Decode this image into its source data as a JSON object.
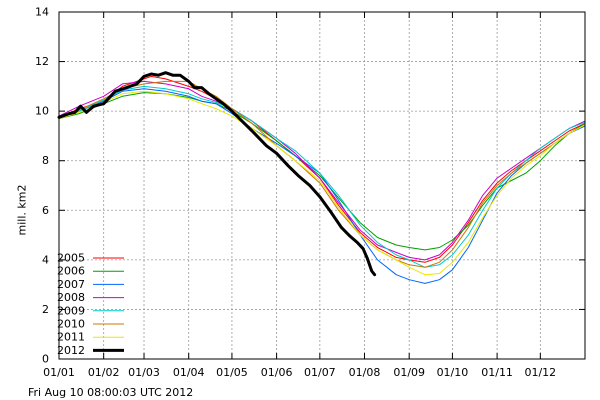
{
  "chart_data": {
    "type": "line",
    "title": "",
    "xlabel": "",
    "ylabel": "mill. km2",
    "ylim": [
      0,
      14
    ],
    "yticks": [
      "0",
      "2",
      "4",
      "6",
      "8",
      "10",
      "12",
      "14"
    ],
    "xlim": [
      1,
      366
    ],
    "xtick_labels": [
      "01/01",
      "01/02",
      "01/03",
      "01/04",
      "01/05",
      "01/06",
      "01/07",
      "01/08",
      "01/09",
      "01/10",
      "01/11",
      "01/12"
    ],
    "xtick_days": [
      1,
      32,
      60,
      91,
      121,
      152,
      182,
      213,
      244,
      274,
      305,
      335
    ],
    "grid": true,
    "legend_position": "bottom-left",
    "timestamp": "Fri Aug 10 08:00:03 UTC 2012",
    "series": [
      {
        "name": "2005",
        "color": "#ff0000",
        "width": 1,
        "points": [
          [
            1,
            9.75
          ],
          [
            15,
            10.1
          ],
          [
            32,
            10.4
          ],
          [
            45,
            11.0
          ],
          [
            55,
            11.2
          ],
          [
            65,
            11.4
          ],
          [
            75,
            11.3
          ],
          [
            91,
            11.0
          ],
          [
            100,
            10.8
          ],
          [
            110,
            10.5
          ],
          [
            121,
            10.1
          ],
          [
            135,
            9.6
          ],
          [
            152,
            8.8
          ],
          [
            165,
            8.2
          ],
          [
            182,
            7.3
          ],
          [
            195,
            6.2
          ],
          [
            210,
            5.1
          ],
          [
            222,
            4.5
          ],
          [
            235,
            4.1
          ],
          [
            244,
            4.0
          ],
          [
            255,
            3.9
          ],
          [
            265,
            4.1
          ],
          [
            274,
            4.6
          ],
          [
            285,
            5.5
          ],
          [
            295,
            6.4
          ],
          [
            305,
            7.1
          ],
          [
            315,
            7.6
          ],
          [
            325,
            8.0
          ],
          [
            335,
            8.4
          ],
          [
            345,
            8.8
          ],
          [
            355,
            9.2
          ],
          [
            366,
            9.5
          ]
        ]
      },
      {
        "name": "2006",
        "color": "#00a000",
        "width": 1,
        "points": [
          [
            1,
            9.7
          ],
          [
            15,
            9.9
          ],
          [
            32,
            10.3
          ],
          [
            45,
            10.6
          ],
          [
            60,
            10.75
          ],
          [
            75,
            10.7
          ],
          [
            91,
            10.55
          ],
          [
            100,
            10.4
          ],
          [
            110,
            10.3
          ],
          [
            121,
            10.0
          ],
          [
            135,
            9.5
          ],
          [
            152,
            8.8
          ],
          [
            165,
            8.2
          ],
          [
            182,
            7.4
          ],
          [
            195,
            6.5
          ],
          [
            210,
            5.5
          ],
          [
            222,
            4.9
          ],
          [
            235,
            4.6
          ],
          [
            244,
            4.5
          ],
          [
            255,
            4.4
          ],
          [
            265,
            4.5
          ],
          [
            274,
            4.8
          ],
          [
            285,
            5.4
          ],
          [
            295,
            6.2
          ],
          [
            305,
            6.9
          ],
          [
            315,
            7.2
          ],
          [
            325,
            7.5
          ],
          [
            335,
            8.0
          ],
          [
            345,
            8.6
          ],
          [
            355,
            9.1
          ],
          [
            366,
            9.5
          ]
        ]
      },
      {
        "name": "2007",
        "color": "#0066ff",
        "width": 1,
        "points": [
          [
            1,
            9.8
          ],
          [
            15,
            10.0
          ],
          [
            32,
            10.4
          ],
          [
            45,
            10.8
          ],
          [
            60,
            10.9
          ],
          [
            75,
            10.8
          ],
          [
            91,
            10.6
          ],
          [
            100,
            10.4
          ],
          [
            110,
            10.3
          ],
          [
            121,
            9.9
          ],
          [
            135,
            9.3
          ],
          [
            152,
            8.7
          ],
          [
            165,
            8.2
          ],
          [
            182,
            7.5
          ],
          [
            195,
            6.4
          ],
          [
            210,
            5.0
          ],
          [
            222,
            4.0
          ],
          [
            235,
            3.4
          ],
          [
            244,
            3.2
          ],
          [
            255,
            3.05
          ],
          [
            265,
            3.2
          ],
          [
            274,
            3.6
          ],
          [
            285,
            4.5
          ],
          [
            295,
            5.6
          ],
          [
            305,
            6.7
          ],
          [
            315,
            7.4
          ],
          [
            325,
            7.9
          ],
          [
            335,
            8.3
          ],
          [
            345,
            8.7
          ],
          [
            355,
            9.1
          ],
          [
            366,
            9.4
          ]
        ]
      },
      {
        "name": "2008",
        "color": "#cc00cc",
        "width": 1,
        "points": [
          [
            1,
            9.8
          ],
          [
            15,
            10.2
          ],
          [
            32,
            10.6
          ],
          [
            45,
            11.1
          ],
          [
            60,
            11.2
          ],
          [
            75,
            11.1
          ],
          [
            91,
            10.9
          ],
          [
            100,
            10.6
          ],
          [
            110,
            10.4
          ],
          [
            121,
            10.1
          ],
          [
            135,
            9.6
          ],
          [
            152,
            8.9
          ],
          [
            165,
            8.3
          ],
          [
            182,
            7.3
          ],
          [
            195,
            6.3
          ],
          [
            210,
            5.2
          ],
          [
            222,
            4.6
          ],
          [
            235,
            4.3
          ],
          [
            244,
            4.1
          ],
          [
            255,
            4.0
          ],
          [
            265,
            4.2
          ],
          [
            274,
            4.7
          ],
          [
            285,
            5.6
          ],
          [
            295,
            6.6
          ],
          [
            305,
            7.3
          ],
          [
            315,
            7.7
          ],
          [
            325,
            8.1
          ],
          [
            335,
            8.5
          ],
          [
            345,
            8.9
          ],
          [
            355,
            9.3
          ],
          [
            366,
            9.6
          ]
        ]
      },
      {
        "name": "2009",
        "color": "#00cccc",
        "width": 1,
        "points": [
          [
            1,
            9.75
          ],
          [
            15,
            10.0
          ],
          [
            32,
            10.45
          ],
          [
            45,
            10.85
          ],
          [
            60,
            11.0
          ],
          [
            75,
            10.9
          ],
          [
            91,
            10.7
          ],
          [
            100,
            10.5
          ],
          [
            110,
            10.35
          ],
          [
            121,
            10.1
          ],
          [
            135,
            9.6
          ],
          [
            152,
            8.9
          ],
          [
            165,
            8.4
          ],
          [
            182,
            7.5
          ],
          [
            195,
            6.6
          ],
          [
            210,
            5.4
          ],
          [
            222,
            4.7
          ],
          [
            235,
            4.2
          ],
          [
            244,
            4.0
          ],
          [
            255,
            3.7
          ],
          [
            265,
            3.8
          ],
          [
            274,
            4.2
          ],
          [
            285,
            5.0
          ],
          [
            295,
            6.0
          ],
          [
            305,
            6.9
          ],
          [
            315,
            7.5
          ],
          [
            325,
            8.0
          ],
          [
            335,
            8.5
          ],
          [
            345,
            8.9
          ],
          [
            355,
            9.3
          ],
          [
            366,
            9.55
          ]
        ]
      },
      {
        "name": "2010",
        "color": "#c87800",
        "width": 1,
        "points": [
          [
            1,
            9.75
          ],
          [
            15,
            10.05
          ],
          [
            32,
            10.5
          ],
          [
            45,
            10.9
          ],
          [
            60,
            11.1
          ],
          [
            75,
            11.2
          ],
          [
            91,
            11.2
          ],
          [
            100,
            10.9
          ],
          [
            110,
            10.6
          ],
          [
            121,
            10.1
          ],
          [
            135,
            9.5
          ],
          [
            152,
            8.6
          ],
          [
            165,
            8.0
          ],
          [
            182,
            7.1
          ],
          [
            195,
            6.0
          ],
          [
            210,
            5.0
          ],
          [
            222,
            4.4
          ],
          [
            235,
            4.0
          ],
          [
            244,
            3.8
          ],
          [
            255,
            3.7
          ],
          [
            265,
            3.9
          ],
          [
            274,
            4.4
          ],
          [
            285,
            5.3
          ],
          [
            295,
            6.3
          ],
          [
            305,
            7.0
          ],
          [
            315,
            7.5
          ],
          [
            325,
            7.9
          ],
          [
            335,
            8.3
          ],
          [
            345,
            8.7
          ],
          [
            355,
            9.1
          ],
          [
            366,
            9.45
          ]
        ]
      },
      {
        "name": "2011",
        "color": "#e8e800",
        "width": 1,
        "points": [
          [
            1,
            9.7
          ],
          [
            15,
            9.95
          ],
          [
            32,
            10.35
          ],
          [
            45,
            10.7
          ],
          [
            60,
            10.8
          ],
          [
            75,
            10.7
          ],
          [
            91,
            10.5
          ],
          [
            100,
            10.3
          ],
          [
            110,
            10.1
          ],
          [
            121,
            9.8
          ],
          [
            135,
            9.3
          ],
          [
            152,
            8.6
          ],
          [
            165,
            8.0
          ],
          [
            182,
            7.2
          ],
          [
            195,
            6.1
          ],
          [
            210,
            5.0
          ],
          [
            222,
            4.4
          ],
          [
            235,
            4.0
          ],
          [
            244,
            3.7
          ],
          [
            255,
            3.4
          ],
          [
            265,
            3.45
          ],
          [
            274,
            3.9
          ],
          [
            285,
            4.7
          ],
          [
            295,
            5.7
          ],
          [
            305,
            6.6
          ],
          [
            315,
            7.3
          ],
          [
            325,
            7.8
          ],
          [
            335,
            8.2
          ],
          [
            345,
            8.7
          ],
          [
            355,
            9.1
          ],
          [
            366,
            9.45
          ]
        ]
      },
      {
        "name": "2012",
        "color": "#000000",
        "width": 3,
        "points": [
          [
            1,
            9.75
          ],
          [
            8,
            9.9
          ],
          [
            12,
            9.95
          ],
          [
            16,
            10.2
          ],
          [
            20,
            9.95
          ],
          [
            25,
            10.2
          ],
          [
            32,
            10.3
          ],
          [
            40,
            10.8
          ],
          [
            48,
            10.95
          ],
          [
            55,
            11.1
          ],
          [
            60,
            11.4
          ],
          [
            65,
            11.5
          ],
          [
            70,
            11.45
          ],
          [
            75,
            11.55
          ],
          [
            80,
            11.45
          ],
          [
            85,
            11.45
          ],
          [
            91,
            11.2
          ],
          [
            95,
            10.95
          ],
          [
            100,
            10.95
          ],
          [
            105,
            10.7
          ],
          [
            110,
            10.5
          ],
          [
            115,
            10.3
          ],
          [
            121,
            10.0
          ],
          [
            128,
            9.6
          ],
          [
            135,
            9.2
          ],
          [
            145,
            8.6
          ],
          [
            152,
            8.3
          ],
          [
            160,
            7.8
          ],
          [
            167,
            7.4
          ],
          [
            175,
            7.0
          ],
          [
            182,
            6.55
          ],
          [
            190,
            5.9
          ],
          [
            197,
            5.3
          ],
          [
            203,
            4.95
          ],
          [
            208,
            4.7
          ],
          [
            212,
            4.45
          ],
          [
            215,
            4.05
          ],
          [
            218,
            3.55
          ],
          [
            220,
            3.4
          ]
        ]
      }
    ]
  }
}
